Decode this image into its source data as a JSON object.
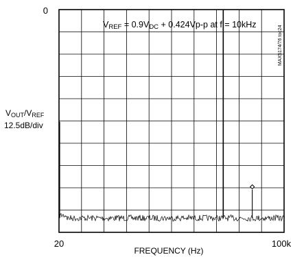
{
  "chart_data": {
    "type": "line",
    "title": {
      "prefix": "V",
      "prefix_sub": "REF",
      "middle": " = 0.9V",
      "middle_sub": "DC",
      "suffix": " + 0.424Vp-p at f = 10kHz"
    },
    "ylabel": {
      "main": "V",
      "sub1": "OUT",
      "slash": "/V",
      "sub2": "REF",
      "scale": "12.5dB/div"
    },
    "xlabel": "FREQUENCY (Hz)",
    "x_tick_labels": [
      "20",
      "100k"
    ],
    "y_tick_labels": [
      "0"
    ],
    "side_label": "MAX5174/76 toc24",
    "xlim": [
      20,
      100000
    ],
    "ylim": [
      -125,
      0
    ],
    "y_divisions": 10,
    "x_divisions": 10,
    "grid": true,
    "noise_floor_db": -117,
    "series": [
      {
        "points": [
          {
            "x": 20,
            "y": -63
          },
          {
            "x": 10000,
            "y": 0
          },
          {
            "x": 30000,
            "y": -101
          }
        ]
      }
    ],
    "annotations": [
      {
        "type": "diamond-marker",
        "x": 30000,
        "y": -101
      }
    ]
  }
}
